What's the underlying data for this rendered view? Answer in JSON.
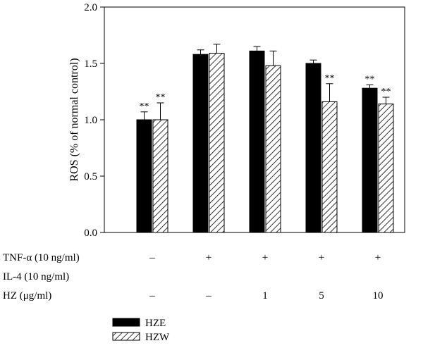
{
  "chart_data": {
    "type": "bar",
    "title": "",
    "xlabel": "",
    "ylabel": "ROS (% of normal control)",
    "ylim": [
      0,
      2.0
    ],
    "yticks": [
      "0.0",
      "0.5",
      "1.0",
      "1.5",
      "2.0"
    ],
    "grid": false,
    "legend_position": "bottom-left",
    "series": [
      {
        "name": "HZE",
        "fill": "solid",
        "color": "#000000",
        "values": [
          1.0,
          1.58,
          1.61,
          1.5,
          1.28
        ],
        "errors": [
          0.07,
          0.04,
          0.04,
          0.03,
          0.03
        ],
        "significance": [
          "**",
          "",
          "",
          "",
          "**"
        ]
      },
      {
        "name": "HZW",
        "fill": "hatch",
        "color": "#000000",
        "values": [
          1.0,
          1.59,
          1.48,
          1.16,
          1.14
        ],
        "errors": [
          0.15,
          0.08,
          0.13,
          0.16,
          0.06
        ],
        "significance": [
          "**",
          "",
          "",
          "**",
          "**"
        ]
      }
    ],
    "conditions": [
      {
        "label": "TNF-α (10 ng/ml)",
        "values": [
          "–",
          "+",
          "+",
          "+",
          "+"
        ]
      },
      {
        "label": "IL-4 (10 ng/ml)",
        "values": [
          "",
          "",
          "",
          "",
          ""
        ]
      },
      {
        "label": "HZ (μg/ml)",
        "values": [
          "–",
          "–",
          "1",
          "5",
          "10"
        ]
      }
    ]
  }
}
